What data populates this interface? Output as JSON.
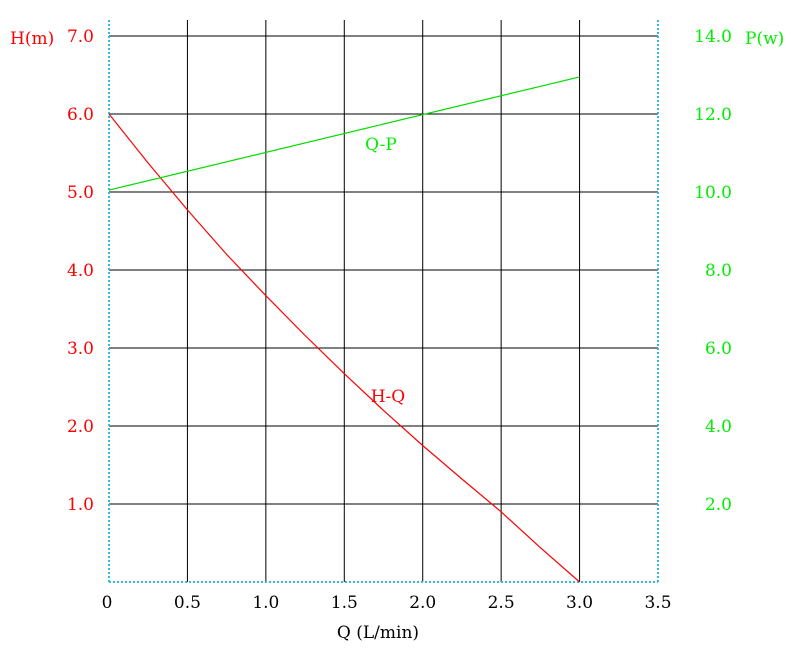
{
  "chart_data": {
    "type": "line",
    "xlabel": "Q (L/min)",
    "ylabel_left": "H(m)",
    "ylabel_right": "P(w)",
    "xlim": [
      0,
      3.5
    ],
    "ylim_left": [
      0,
      7.0
    ],
    "ylim_right": [
      0,
      14.0
    ],
    "grid": true,
    "x_ticks": [
      "0",
      "0.5",
      "1.0",
      "1.5",
      "2.0",
      "2.5",
      "3.0",
      "3.5"
    ],
    "x_tick_values": [
      0,
      0.5,
      1.0,
      1.5,
      2.0,
      2.5,
      3.0,
      3.5
    ],
    "y_left_ticks": [
      "1.0",
      "2.0",
      "3.0",
      "4.0",
      "5.0",
      "6.0",
      "7.0"
    ],
    "y_left_tick_values": [
      1,
      2,
      3,
      4,
      5,
      6,
      7
    ],
    "y_right_ticks": [
      "2.0",
      "4.0",
      "6.0",
      "8.0",
      "10.0",
      "12.0",
      "14.0"
    ],
    "y_right_tick_values": [
      2,
      4,
      6,
      8,
      10,
      12,
      14
    ],
    "series": [
      {
        "name": "H-Q",
        "axis": "left",
        "color": "#ff0000",
        "x": [
          0,
          0.25,
          0.5,
          0.75,
          1.0,
          1.25,
          1.5,
          1.75,
          2.0,
          2.25,
          2.5,
          2.75,
          3.0
        ],
        "y": [
          6.0,
          5.37,
          4.77,
          4.2,
          3.67,
          3.16,
          2.67,
          2.2,
          1.75,
          1.32,
          0.9,
          0.44,
          0.0
        ]
      },
      {
        "name": "Q-P",
        "axis": "right",
        "color": "#00dd00",
        "x": [
          0,
          3.0
        ],
        "y": [
          10.05,
          12.95
        ]
      }
    ]
  }
}
